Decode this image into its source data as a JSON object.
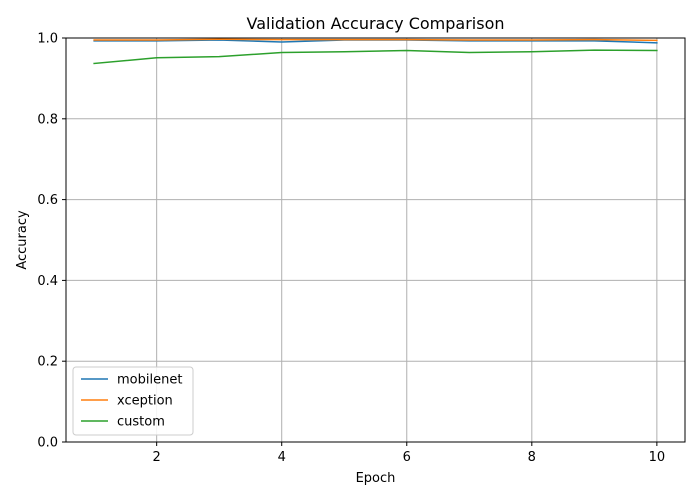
{
  "chart_data": {
    "type": "line",
    "title": "Validation Accuracy Comparison",
    "xlabel": "Epoch",
    "ylabel": "Accuracy",
    "x": [
      1,
      2,
      3,
      4,
      5,
      6,
      7,
      8,
      9,
      10
    ],
    "xlim": [
      0.55,
      10.45
    ],
    "ylim": [
      0.0,
      1.0
    ],
    "xticks": [
      2,
      4,
      6,
      8,
      10
    ],
    "yticks": [
      0.0,
      0.2,
      0.4,
      0.6,
      0.8,
      1.0
    ],
    "grid": true,
    "legend_position": "lower-left",
    "series": [
      {
        "name": "mobilenet",
        "color": "#1f77b4",
        "values": [
          0.993,
          0.993,
          0.995,
          0.99,
          0.995,
          0.995,
          0.993,
          0.993,
          0.993,
          0.988
        ]
      },
      {
        "name": "xception",
        "color": "#ff7f0e",
        "values": [
          0.995,
          0.995,
          0.997,
          0.996,
          0.996,
          0.996,
          0.995,
          0.995,
          0.996,
          0.994
        ]
      },
      {
        "name": "custom",
        "color": "#2ca02c",
        "values": [
          0.937,
          0.951,
          0.954,
          0.964,
          0.966,
          0.969,
          0.964,
          0.966,
          0.97,
          0.969
        ]
      }
    ]
  }
}
